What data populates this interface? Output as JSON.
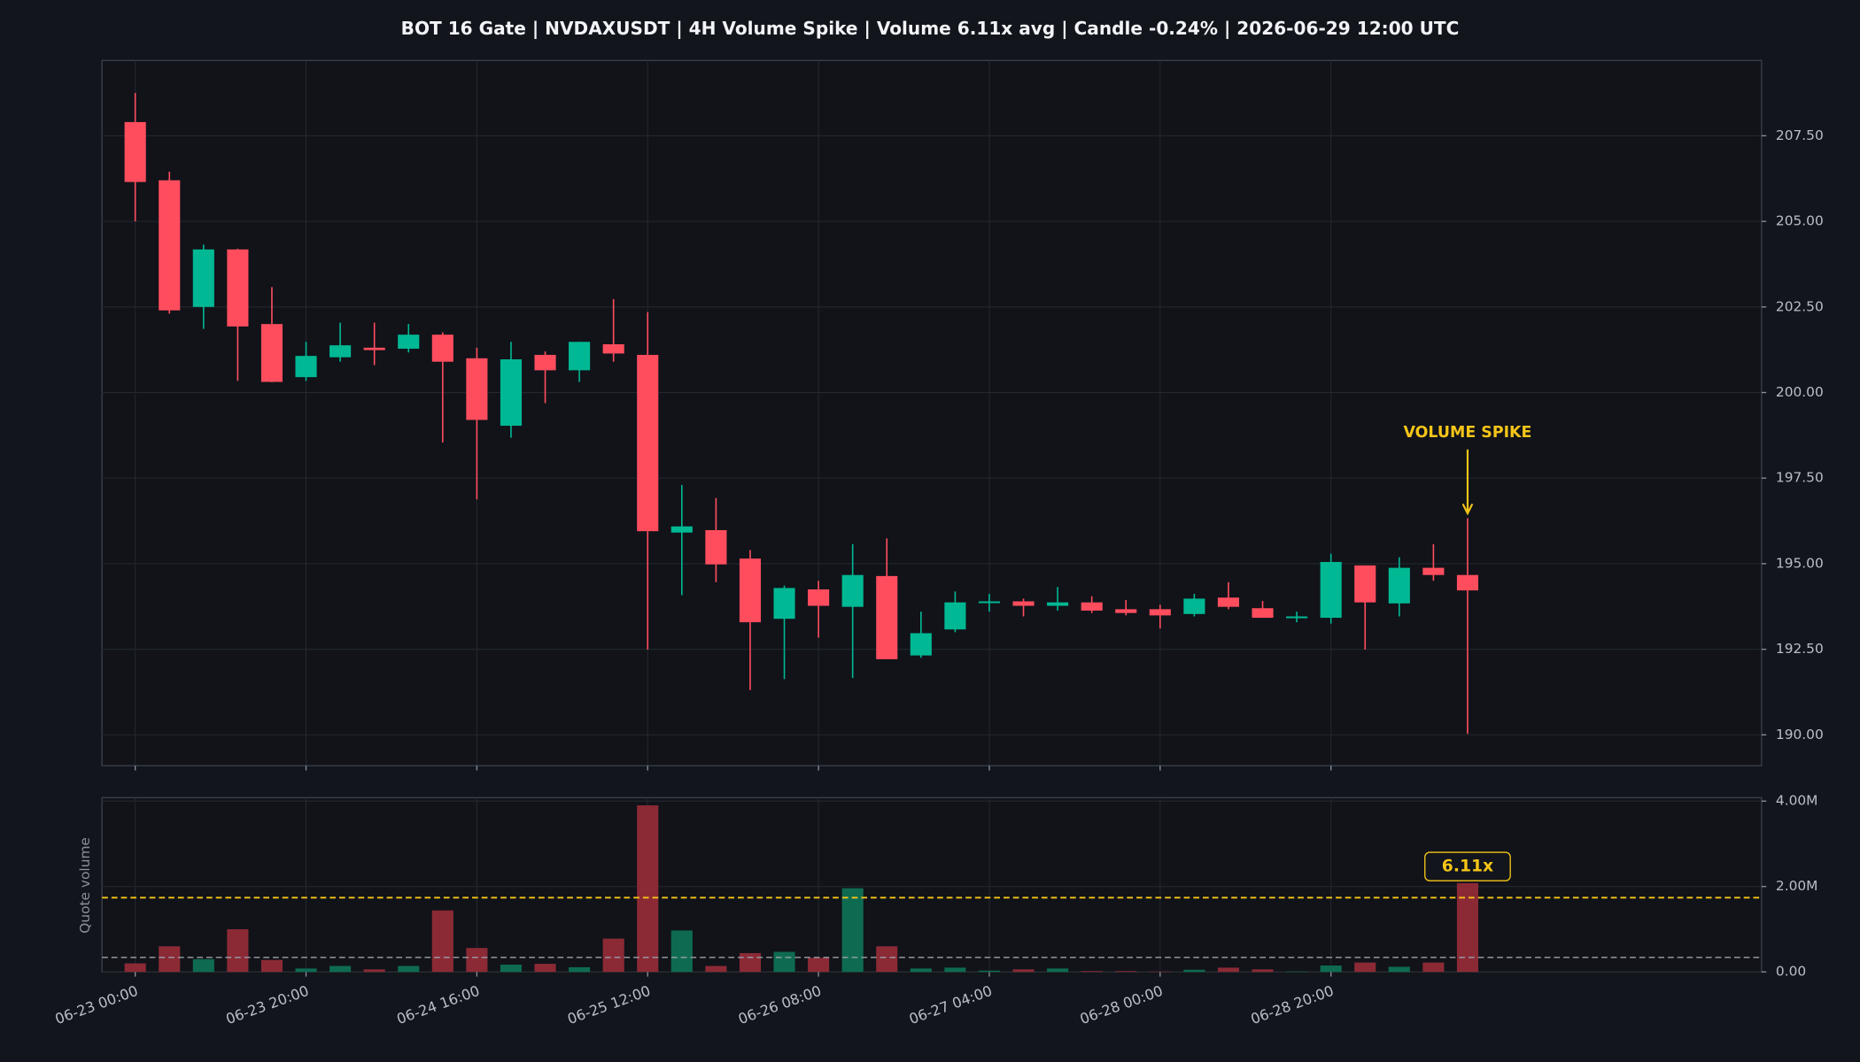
{
  "chart_data": [
    {
      "type": "candlestick",
      "title": "BOT 16 Gate | NVDAXUSDT | 4H Volume Spike | Volume 6.11x avg | Candle -0.24% | 2026-06-29 12:00 UTC",
      "categories": [
        "06-23 00:00",
        null,
        null,
        null,
        null,
        "06-23 20:00",
        null,
        null,
        null,
        null,
        "06-24 16:00",
        null,
        null,
        null,
        null,
        "06-25 12:00",
        null,
        null,
        null,
        null,
        "06-26 08:00",
        null,
        null,
        null,
        null,
        "06-27 04:00",
        null,
        null,
        null,
        null,
        "06-28 00:00",
        null,
        null,
        null,
        null,
        "06-28 20:00",
        null,
        null,
        null,
        null
      ],
      "open": [
        207.9,
        206.2,
        202.5,
        204.18,
        202.0,
        200.45,
        201.03,
        201.31,
        201.28,
        201.69,
        201.0,
        199.03,
        201.1,
        200.65,
        201.41,
        201.1,
        195.91,
        195.98,
        195.15,
        193.39,
        194.25,
        193.74,
        194.64,
        192.32,
        193.08,
        193.87,
        193.9,
        193.77,
        193.87,
        193.67,
        193.67,
        193.53,
        194.01,
        193.7,
        193.42,
        193.42,
        194.95,
        193.84,
        194.88,
        194.67
      ],
      "high": [
        208.75,
        206.45,
        204.32,
        204.2,
        203.08,
        201.48,
        202.04,
        202.04,
        202.0,
        201.76,
        201.31,
        201.48,
        201.2,
        201.48,
        202.73,
        202.35,
        197.3,
        196.92,
        195.4,
        194.36,
        194.5,
        195.57,
        195.74,
        193.6,
        194.19,
        194.12,
        193.98,
        194.32,
        194.05,
        193.94,
        193.8,
        194.12,
        194.46,
        193.91,
        193.6,
        195.29,
        194.95,
        195.19,
        195.57,
        196.33
      ],
      "low": [
        205.0,
        202.3,
        201.86,
        200.34,
        200.3,
        200.34,
        200.9,
        200.8,
        201.17,
        198.54,
        196.88,
        198.68,
        199.69,
        200.31,
        200.9,
        192.49,
        194.08,
        194.46,
        191.31,
        191.63,
        192.84,
        191.66,
        192.21,
        192.25,
        193.0,
        193.6,
        193.46,
        193.63,
        193.56,
        193.49,
        193.11,
        193.46,
        193.67,
        193.42,
        193.29,
        193.25,
        192.49,
        193.46,
        194.5,
        190.03
      ],
      "close": [
        206.15,
        202.4,
        204.18,
        201.93,
        200.31,
        201.07,
        201.38,
        201.24,
        201.69,
        200.9,
        199.2,
        200.97,
        200.65,
        201.48,
        201.14,
        195.95,
        196.09,
        194.98,
        193.29,
        194.29,
        193.77,
        194.67,
        192.21,
        192.97,
        193.87,
        193.9,
        193.77,
        193.87,
        193.63,
        193.56,
        193.49,
        193.98,
        193.74,
        193.42,
        193.46,
        195.05,
        193.87,
        194.88,
        194.67,
        194.22
      ],
      "up_color": "#00b894",
      "down_color": "#ff4d5e",
      "ylim": [
        189.1,
        209.7
      ],
      "yticks": [
        {
          "value": 190,
          "label": "190.00"
        },
        {
          "value": 192.5,
          "label": "192.50"
        },
        {
          "value": 195,
          "label": "195.00"
        },
        {
          "value": 197.5,
          "label": "197.50"
        },
        {
          "value": 200,
          "label": "200.00"
        },
        {
          "value": 202.5,
          "label": "202.50"
        },
        {
          "value": 205,
          "label": "205.00"
        },
        {
          "value": 207.5,
          "label": "207.50"
        }
      ],
      "grid": true,
      "annotation": "VOLUME SPIKE",
      "annotation_color": "#f5c518"
    },
    {
      "type": "bar",
      "ylabel": "Quote volume",
      "values": [
        200000,
        600000,
        300000,
        1000000,
        280000,
        80000,
        140000,
        60000,
        140000,
        1440000,
        560000,
        170000,
        190000,
        110000,
        780000,
        3900000,
        970000,
        140000,
        440000,
        470000,
        330000,
        1960000,
        600000,
        80000,
        100000,
        30000,
        60000,
        80000,
        20000,
        20000,
        10000,
        50000,
        100000,
        60000,
        10000,
        150000,
        220000,
        120000,
        220000,
        2080000
      ],
      "up_color": "#0e6b52",
      "down_color": "#8b2a35",
      "ylim": [
        0,
        4080000
      ],
      "yticks": [
        {
          "value": 0,
          "label": "0.00"
        },
        {
          "value": 2000000,
          "label": "2.00M"
        },
        {
          "value": 4000000,
          "label": "4.00M"
        }
      ],
      "average": 340000,
      "average_color": "#9aa0aa",
      "threshold": 1740000,
      "threshold_color": "#f5c518",
      "badge": "6.11x",
      "grid": true
    }
  ]
}
